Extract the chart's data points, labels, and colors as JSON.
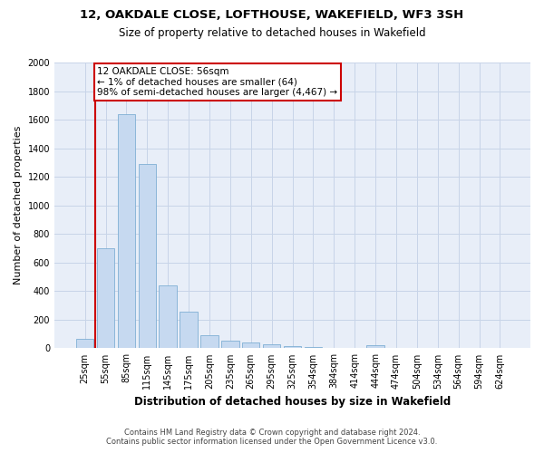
{
  "title_line1": "12, OAKDALE CLOSE, LOFTHOUSE, WAKEFIELD, WF3 3SH",
  "title_line2": "Size of property relative to detached houses in Wakefield",
  "xlabel": "Distribution of detached houses by size in Wakefield",
  "ylabel": "Number of detached properties",
  "bar_color": "#c6d9f0",
  "bar_edge_color": "#7fafd4",
  "annotation_line_color": "#cc0000",
  "annotation_box_color": "#cc0000",
  "annotation_text_line1": "12 OAKDALE CLOSE: 56sqm",
  "annotation_text_line2": "← 1% of detached houses are smaller (64)",
  "annotation_text_line3": "98% of semi-detached houses are larger (4,467) →",
  "categories": [
    "25sqm",
    "55sqm",
    "85sqm",
    "115sqm",
    "145sqm",
    "175sqm",
    "205sqm",
    "235sqm",
    "265sqm",
    "295sqm",
    "325sqm",
    "354sqm",
    "384sqm",
    "414sqm",
    "444sqm",
    "474sqm",
    "504sqm",
    "534sqm",
    "564sqm",
    "594sqm",
    "624sqm"
  ],
  "values": [
    65,
    700,
    1640,
    1290,
    440,
    255,
    90,
    55,
    40,
    25,
    18,
    12,
    0,
    0,
    20,
    0,
    0,
    0,
    0,
    0,
    0
  ],
  "annotation_vline_x": 0.5,
  "ylim": [
    0,
    2000
  ],
  "yticks": [
    0,
    200,
    400,
    600,
    800,
    1000,
    1200,
    1400,
    1600,
    1800,
    2000
  ],
  "footer_line1": "Contains HM Land Registry data © Crown copyright and database right 2024.",
  "footer_line2": "Contains public sector information licensed under the Open Government Licence v3.0.",
  "background_color": "#ffffff",
  "plot_bg_color": "#e8eef8",
  "grid_color": "#c8d4e8"
}
